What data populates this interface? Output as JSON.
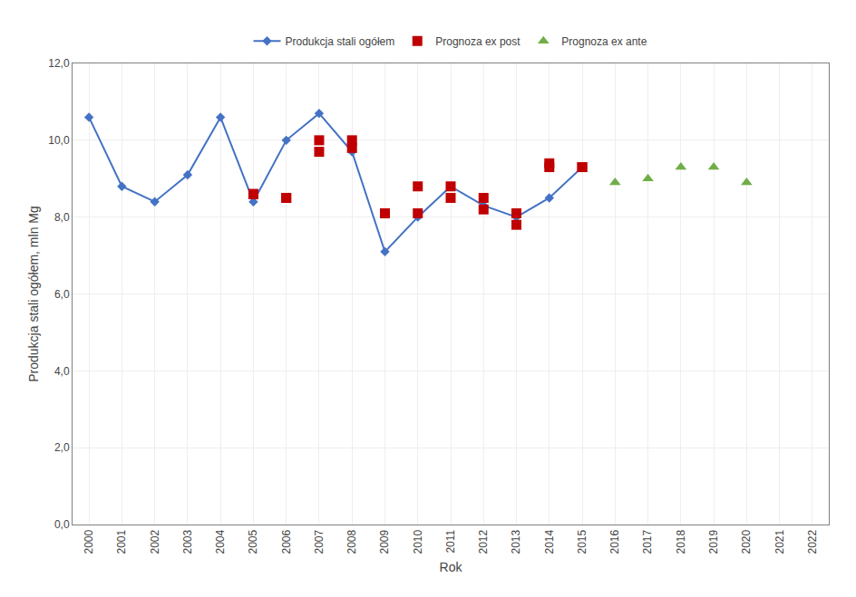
{
  "chart_data": {
    "type": "line",
    "xlabel": "Rok",
    "ylabel": "Produkcja stali ogółem, mln Mg",
    "xlim": [
      1999.5,
      2022.5
    ],
    "ylim": [
      0,
      12.0
    ],
    "xticks": [
      2000,
      2001,
      2002,
      2003,
      2004,
      2005,
      2006,
      2007,
      2008,
      2009,
      2010,
      2011,
      2012,
      2013,
      2014,
      2015,
      2016,
      2017,
      2018,
      2019,
      2020,
      2021,
      2022
    ],
    "yticks": [
      {
        "value": 0.0,
        "label": "0,0"
      },
      {
        "value": 2.0,
        "label": "2,0"
      },
      {
        "value": 4.0,
        "label": "4,0"
      },
      {
        "value": 6.0,
        "label": "6,0"
      },
      {
        "value": 8.0,
        "label": "8,0"
      },
      {
        "value": 10.0,
        "label": "10,0"
      },
      {
        "value": 12.0,
        "label": "12,0"
      }
    ],
    "grid": true,
    "legend": "top",
    "series": [
      {
        "name": "Produkcja stali ogółem",
        "type": "line",
        "color": "#4472C4",
        "marker": "diamond",
        "line_style": "solid",
        "x": [
          2000,
          2001,
          2002,
          2003,
          2004,
          2005,
          2006,
          2007,
          2008,
          2009,
          2010,
          2011,
          2012,
          2013,
          2014,
          2015
        ],
        "values": [
          10.6,
          8.8,
          8.4,
          9.1,
          10.6,
          8.4,
          10.0,
          10.7,
          9.7,
          7.1,
          8.0,
          8.8,
          8.3,
          8.0,
          8.5,
          9.3
        ]
      },
      {
        "name": "Prognoza ex post",
        "type": "scatter",
        "color": "#C00000",
        "marker": "square",
        "x": [
          2005,
          2005,
          2006,
          2006,
          2007,
          2007,
          2008,
          2008,
          2009,
          2009,
          2010,
          2010,
          2011,
          2011,
          2012,
          2012,
          2013,
          2013,
          2014,
          2014,
          2015,
          2015
        ],
        "values": [
          8.6,
          8.6,
          8.5,
          8.5,
          9.7,
          10.0,
          9.8,
          10.0,
          8.1,
          8.1,
          8.1,
          8.8,
          8.5,
          8.8,
          8.2,
          8.5,
          7.8,
          8.1,
          9.3,
          9.4,
          9.3,
          9.3
        ]
      },
      {
        "name": "Prognoza ex ante",
        "type": "scatter",
        "color": "#70AD47",
        "marker": "triangle",
        "x": [
          2016,
          2017,
          2018,
          2019,
          2020
        ],
        "values": [
          8.9,
          9.0,
          9.3,
          9.3,
          8.9
        ]
      }
    ]
  }
}
